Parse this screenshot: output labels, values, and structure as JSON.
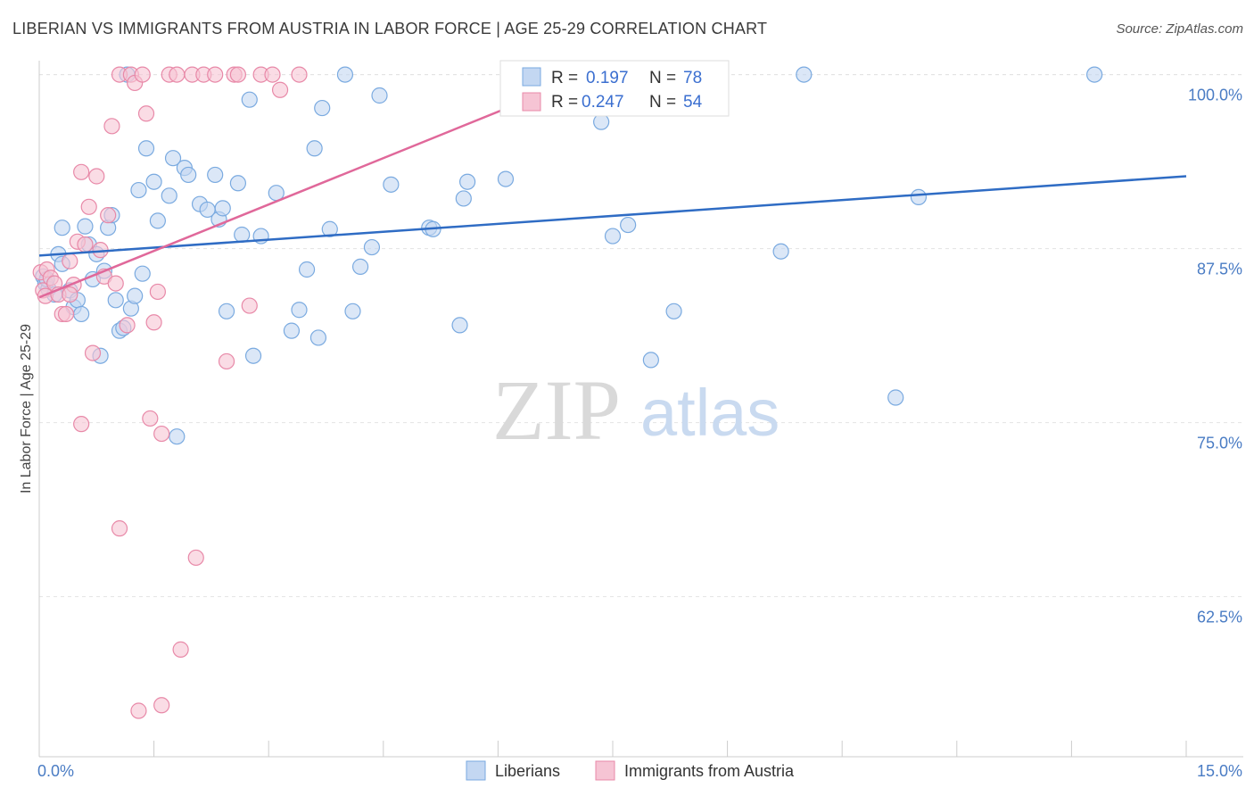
{
  "title": "LIBERIAN VS IMMIGRANTS FROM AUSTRIA IN LABOR FORCE | AGE 25-29 CORRELATION CHART",
  "source": "Source: ZipAtlas.com",
  "watermark": {
    "zip": "ZIP",
    "atlas": "atlas"
  },
  "chart_data": {
    "type": "scatter",
    "title": "LIBERIAN VS IMMIGRANTS FROM AUSTRIA IN LABOR FORCE | AGE 25-29 CORRELATION CHART",
    "xlabel": "",
    "ylabel": "In Labor Force | Age 25-29",
    "xlim": [
      0,
      15
    ],
    "ylim": [
      51,
      101
    ],
    "x_tick_labels": [
      "0.0%",
      "15.0%"
    ],
    "y_ticks": [
      62.5,
      75.0,
      87.5,
      100.0
    ],
    "y_tick_labels": [
      "62.5%",
      "75.0%",
      "87.5%",
      "100.0%"
    ],
    "grid": true,
    "legend_placement": "top-center",
    "legend_stats": [
      {
        "r_label": "R =",
        "r": "0.197",
        "n_label": "N =",
        "n": "78"
      },
      {
        "r_label": "R =",
        "r": "0.247",
        "n_label": "N =",
        "n": "54"
      }
    ],
    "series": [
      {
        "name": "Liberians",
        "color": "#7aaae0",
        "fill": "#c3d7f2",
        "trend_color": "#2f6cc4",
        "trend": [
          [
            0,
            87.0
          ],
          [
            15,
            92.7
          ]
        ],
        "points": [
          [
            0.05,
            85.5
          ],
          [
            0.08,
            85.0
          ],
          [
            0.12,
            84.6
          ],
          [
            0.1,
            85.3
          ],
          [
            0.2,
            84.2
          ],
          [
            0.25,
            87.1
          ],
          [
            0.3,
            86.4
          ],
          [
            0.4,
            84.5
          ],
          [
            0.45,
            83.3
          ],
          [
            0.5,
            83.8
          ],
          [
            0.55,
            82.8
          ],
          [
            0.65,
            87.8
          ],
          [
            0.7,
            85.3
          ],
          [
            0.6,
            89.1
          ],
          [
            0.75,
            87.1
          ],
          [
            0.85,
            85.9
          ],
          [
            0.9,
            89.0
          ],
          [
            0.95,
            89.9
          ],
          [
            0.8,
            79.8
          ],
          [
            1.0,
            83.8
          ],
          [
            1.05,
            81.6
          ],
          [
            1.1,
            81.8
          ],
          [
            1.2,
            83.2
          ],
          [
            1.25,
            84.1
          ],
          [
            1.35,
            85.7
          ],
          [
            1.4,
            94.7
          ],
          [
            1.3,
            91.7
          ],
          [
            1.5,
            92.3
          ],
          [
            1.55,
            89.5
          ],
          [
            1.7,
            91.3
          ],
          [
            1.75,
            94.0
          ],
          [
            1.9,
            93.3
          ],
          [
            1.95,
            92.8
          ],
          [
            2.1,
            90.7
          ],
          [
            2.2,
            90.3
          ],
          [
            2.3,
            92.8
          ],
          [
            2.35,
            89.6
          ],
          [
            2.4,
            90.4
          ],
          [
            2.45,
            83.0
          ],
          [
            2.6,
            92.2
          ],
          [
            2.65,
            88.5
          ],
          [
            2.75,
            98.2
          ],
          [
            2.8,
            79.8
          ],
          [
            2.9,
            88.4
          ],
          [
            3.1,
            91.5
          ],
          [
            3.3,
            81.6
          ],
          [
            3.4,
            83.1
          ],
          [
            3.5,
            86.0
          ],
          [
            3.6,
            94.7
          ],
          [
            3.65,
            81.1
          ],
          [
            3.7,
            97.6
          ],
          [
            3.8,
            88.9
          ],
          [
            4.0,
            100.0
          ],
          [
            4.1,
            83.0
          ],
          [
            4.2,
            86.2
          ],
          [
            4.35,
            87.6
          ],
          [
            4.45,
            98.5
          ],
          [
            4.6,
            92.1
          ],
          [
            5.1,
            89.0
          ],
          [
            5.15,
            88.9
          ],
          [
            5.5,
            82.0
          ],
          [
            5.55,
            91.1
          ],
          [
            5.6,
            92.3
          ],
          [
            6.1,
            92.5
          ],
          [
            1.8,
            74.0
          ],
          [
            7.3,
            100.0
          ],
          [
            7.35,
            96.6
          ],
          [
            7.5,
            88.4
          ],
          [
            7.7,
            89.2
          ],
          [
            8.0,
            79.5
          ],
          [
            8.3,
            83.0
          ],
          [
            9.7,
            87.3
          ],
          [
            10.0,
            100.0
          ],
          [
            11.2,
            76.8
          ],
          [
            11.5,
            91.2
          ],
          [
            13.8,
            100.0
          ],
          [
            0.3,
            89.0
          ],
          [
            1.15,
            100.0
          ]
        ]
      },
      {
        "name": "Immigrants from Austria",
        "color": "#e889a8",
        "fill": "#f6c4d4",
        "trend_color": "#e0689a",
        "trend": [
          [
            0,
            84.0
          ],
          [
            7.2,
            100.0
          ]
        ],
        "points": [
          [
            0.02,
            85.8
          ],
          [
            0.05,
            84.5
          ],
          [
            0.08,
            84.1
          ],
          [
            0.1,
            86.0
          ],
          [
            0.15,
            85.4
          ],
          [
            0.2,
            85.0
          ],
          [
            0.25,
            84.2
          ],
          [
            0.3,
            82.8
          ],
          [
            0.35,
            82.8
          ],
          [
            0.4,
            86.6
          ],
          [
            0.45,
            84.9
          ],
          [
            0.5,
            88.0
          ],
          [
            0.55,
            93.0
          ],
          [
            0.6,
            87.8
          ],
          [
            0.65,
            90.5
          ],
          [
            0.7,
            80.0
          ],
          [
            0.75,
            92.7
          ],
          [
            0.8,
            87.4
          ],
          [
            0.85,
            85.5
          ],
          [
            0.9,
            89.9
          ],
          [
            0.95,
            96.3
          ],
          [
            1.0,
            85.0
          ],
          [
            1.05,
            100.0
          ],
          [
            1.15,
            82.0
          ],
          [
            1.2,
            100.0
          ],
          [
            1.25,
            99.4
          ],
          [
            1.35,
            100.0
          ],
          [
            1.4,
            97.2
          ],
          [
            1.5,
            82.2
          ],
          [
            1.55,
            84.4
          ],
          [
            1.7,
            100.0
          ],
          [
            1.8,
            100.0
          ],
          [
            2.0,
            100.0
          ],
          [
            2.15,
            100.0
          ],
          [
            2.3,
            100.0
          ],
          [
            2.45,
            79.4
          ],
          [
            2.55,
            100.0
          ],
          [
            2.6,
            100.0
          ],
          [
            2.75,
            83.4
          ],
          [
            2.9,
            100.0
          ],
          [
            3.05,
            100.0
          ],
          [
            3.15,
            98.9
          ],
          [
            3.4,
            100.0
          ],
          [
            0.55,
            74.9
          ],
          [
            1.05,
            67.4
          ],
          [
            1.45,
            75.3
          ],
          [
            1.6,
            74.2
          ],
          [
            2.05,
            65.3
          ],
          [
            1.85,
            58.7
          ],
          [
            1.3,
            54.3
          ],
          [
            1.6,
            54.7
          ],
          [
            6.9,
            100.0
          ],
          [
            8.25,
            100.0
          ],
          [
            0.4,
            84.2
          ]
        ]
      }
    ]
  }
}
